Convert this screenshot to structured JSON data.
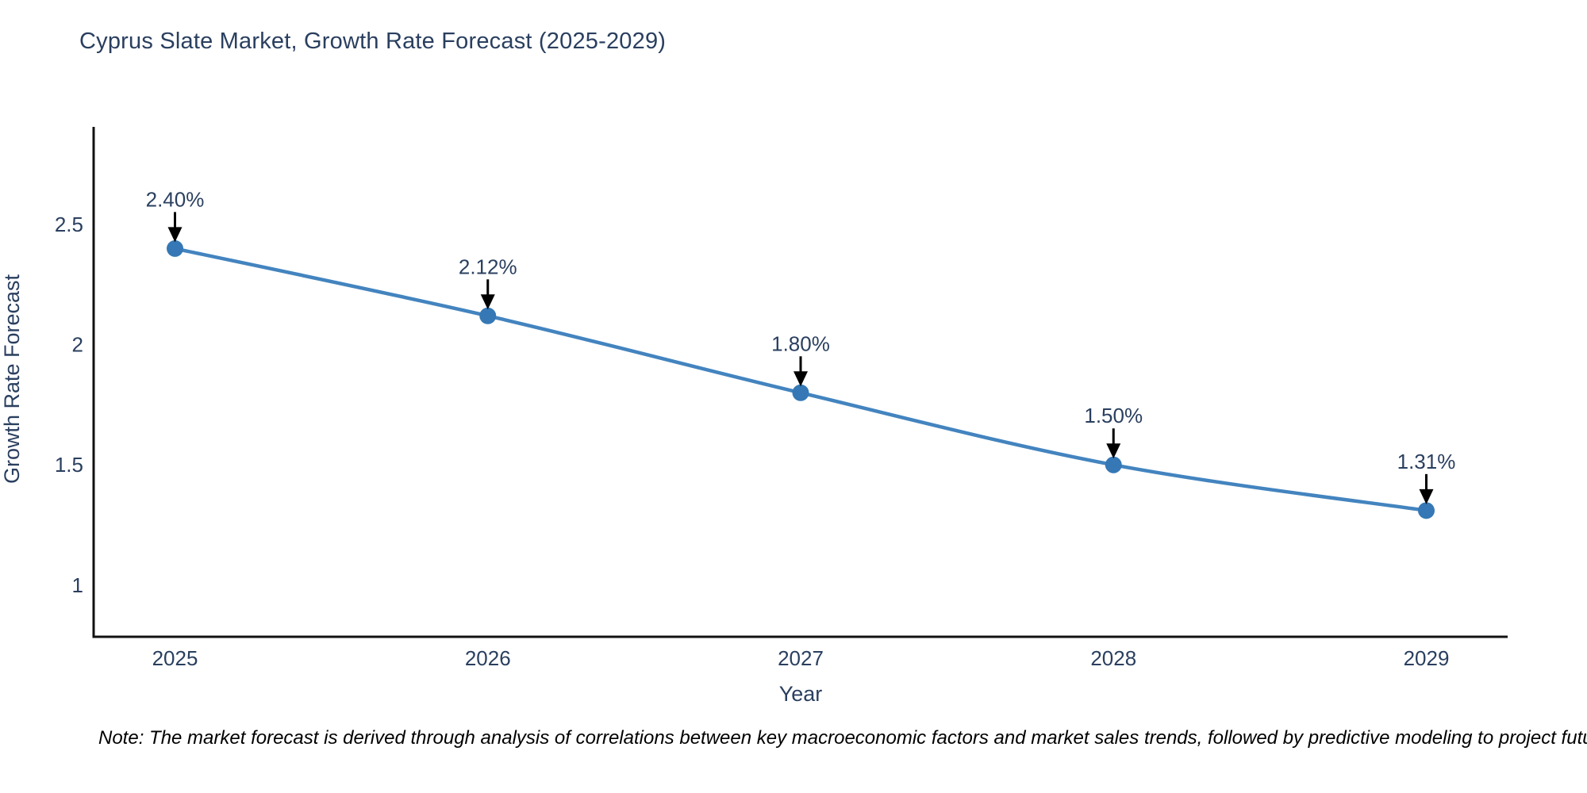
{
  "chart_data": {
    "type": "line",
    "title": "Cyprus Slate Market, Growth Rate Forecast (2025-2029)",
    "xlabel": "Year",
    "ylabel": "Growth Rate Forecast",
    "x": [
      2025,
      2026,
      2027,
      2028,
      2029
    ],
    "y": [
      2.4,
      2.12,
      1.8,
      1.5,
      1.31
    ],
    "point_labels": [
      "2.40%",
      "2.12%",
      "1.80%",
      "1.50%",
      "1.31%"
    ],
    "xticks": [
      "2025",
      "2026",
      "2027",
      "2028",
      "2029"
    ],
    "yticks": [
      "2.5",
      "2",
      "1.5",
      "1"
    ],
    "ytick_values": [
      2.5,
      2.0,
      1.5,
      1.0
    ],
    "xlim": [
      2024.74,
      2029.26
    ],
    "ylim": [
      0.785,
      2.906
    ],
    "line_shape": "spline",
    "grid": false,
    "legend": "none",
    "note": "Note: The market forecast is derived through analysis of correlations between key macroeconomic factors and market sales trends, followed by predictive modeling to project future sales",
    "colors": {
      "line": "#4384bf",
      "marker": "#3578b5",
      "axis": "#111111",
      "text": "#2a3f5f",
      "arrow": "#000000",
      "note_text": "#000000",
      "background": "#ffffff"
    }
  }
}
